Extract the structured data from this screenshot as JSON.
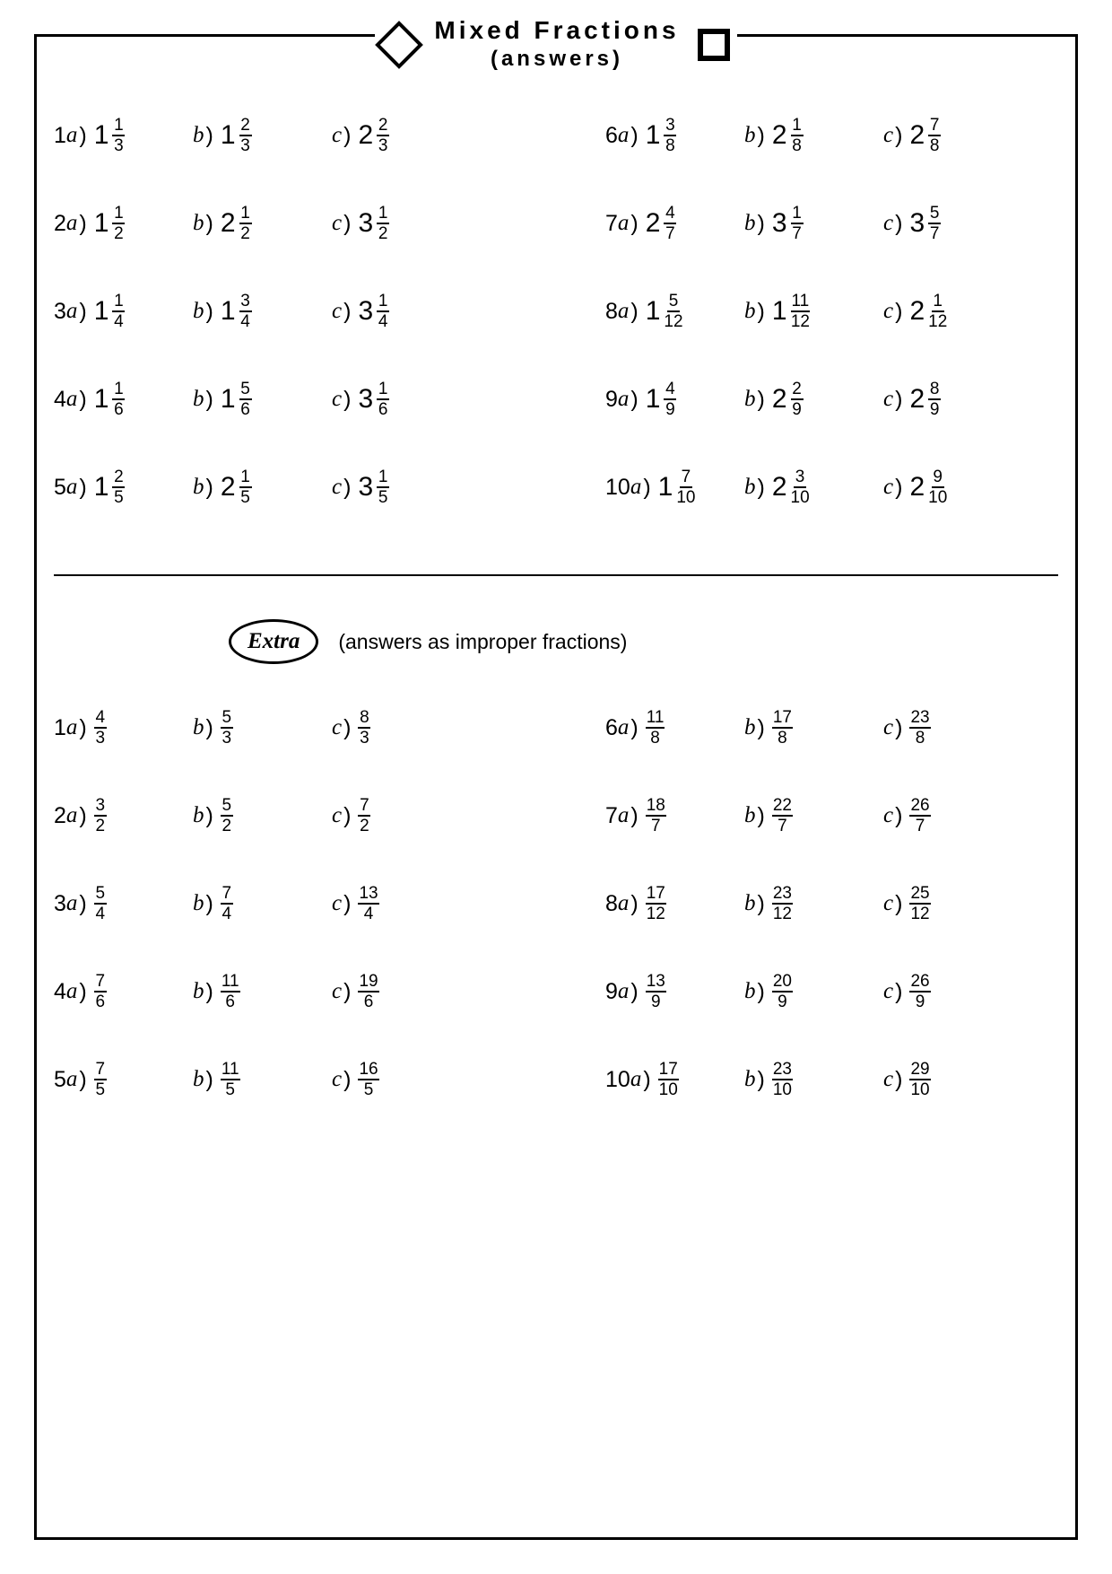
{
  "title": "Mixed Fractions",
  "subtitle": "(answers)",
  "extra_label": "Extra",
  "extra_note": "(answers as improper fractions)",
  "colors": {
    "border": "#000000",
    "background": "#ffffff",
    "text": "#000000"
  },
  "mixed_left": [
    {
      "n": "1",
      "a": {
        "w": "1",
        "num": "1",
        "den": "3"
      },
      "b": {
        "w": "1",
        "num": "2",
        "den": "3"
      },
      "c": {
        "w": "2",
        "num": "2",
        "den": "3"
      }
    },
    {
      "n": "2",
      "a": {
        "w": "1",
        "num": "1",
        "den": "2"
      },
      "b": {
        "w": "2",
        "num": "1",
        "den": "2"
      },
      "c": {
        "w": "3",
        "num": "1",
        "den": "2"
      }
    },
    {
      "n": "3",
      "a": {
        "w": "1",
        "num": "1",
        "den": "4"
      },
      "b": {
        "w": "1",
        "num": "3",
        "den": "4"
      },
      "c": {
        "w": "3",
        "num": "1",
        "den": "4"
      }
    },
    {
      "n": "4",
      "a": {
        "w": "1",
        "num": "1",
        "den": "6"
      },
      "b": {
        "w": "1",
        "num": "5",
        "den": "6"
      },
      "c": {
        "w": "3",
        "num": "1",
        "den": "6"
      }
    },
    {
      "n": "5",
      "a": {
        "w": "1",
        "num": "2",
        "den": "5"
      },
      "b": {
        "w": "2",
        "num": "1",
        "den": "5"
      },
      "c": {
        "w": "3",
        "num": "1",
        "den": "5"
      }
    }
  ],
  "mixed_right": [
    {
      "n": "6",
      "a": {
        "w": "1",
        "num": "3",
        "den": "8"
      },
      "b": {
        "w": "2",
        "num": "1",
        "den": "8"
      },
      "c": {
        "w": "2",
        "num": "7",
        "den": "8"
      }
    },
    {
      "n": "7",
      "a": {
        "w": "2",
        "num": "4",
        "den": "7"
      },
      "b": {
        "w": "3",
        "num": "1",
        "den": "7"
      },
      "c": {
        "w": "3",
        "num": "5",
        "den": "7"
      }
    },
    {
      "n": "8",
      "a": {
        "w": "1",
        "num": "5",
        "den": "12"
      },
      "b": {
        "w": "1",
        "num": "11",
        "den": "12"
      },
      "c": {
        "w": "2",
        "num": "1",
        "den": "12"
      }
    },
    {
      "n": "9",
      "a": {
        "w": "1",
        "num": "4",
        "den": "9"
      },
      "b": {
        "w": "2",
        "num": "2",
        "den": "9"
      },
      "c": {
        "w": "2",
        "num": "8",
        "den": "9"
      }
    },
    {
      "n": "10",
      "a": {
        "w": "1",
        "num": "7",
        "den": "10"
      },
      "b": {
        "w": "2",
        "num": "3",
        "den": "10"
      },
      "c": {
        "w": "2",
        "num": "9",
        "den": "10"
      }
    }
  ],
  "improper_left": [
    {
      "n": "1",
      "a": {
        "num": "4",
        "den": "3"
      },
      "b": {
        "num": "5",
        "den": "3"
      },
      "c": {
        "num": "8",
        "den": "3"
      }
    },
    {
      "n": "2",
      "a": {
        "num": "3",
        "den": "2"
      },
      "b": {
        "num": "5",
        "den": "2"
      },
      "c": {
        "num": "7",
        "den": "2"
      }
    },
    {
      "n": "3",
      "a": {
        "num": "5",
        "den": "4"
      },
      "b": {
        "num": "7",
        "den": "4"
      },
      "c": {
        "num": "13",
        "den": "4"
      }
    },
    {
      "n": "4",
      "a": {
        "num": "7",
        "den": "6"
      },
      "b": {
        "num": "11",
        "den": "6"
      },
      "c": {
        "num": "19",
        "den": "6"
      }
    },
    {
      "n": "5",
      "a": {
        "num": "7",
        "den": "5"
      },
      "b": {
        "num": "11",
        "den": "5"
      },
      "c": {
        "num": "16",
        "den": "5"
      }
    }
  ],
  "improper_right": [
    {
      "n": "6",
      "a": {
        "num": "11",
        "den": "8"
      },
      "b": {
        "num": "17",
        "den": "8"
      },
      "c": {
        "num": "23",
        "den": "8"
      }
    },
    {
      "n": "7",
      "a": {
        "num": "18",
        "den": "7"
      },
      "b": {
        "num": "22",
        "den": "7"
      },
      "c": {
        "num": "26",
        "den": "7"
      }
    },
    {
      "n": "8",
      "a": {
        "num": "17",
        "den": "12"
      },
      "b": {
        "num": "23",
        "den": "12"
      },
      "c": {
        "num": "25",
        "den": "12"
      }
    },
    {
      "n": "9",
      "a": {
        "num": "13",
        "den": "9"
      },
      "b": {
        "num": "20",
        "den": "9"
      },
      "c": {
        "num": "26",
        "den": "9"
      }
    },
    {
      "n": "10",
      "a": {
        "num": "17",
        "den": "10"
      },
      "b": {
        "num": "23",
        "den": "10"
      },
      "c": {
        "num": "29",
        "den": "10"
      }
    }
  ]
}
